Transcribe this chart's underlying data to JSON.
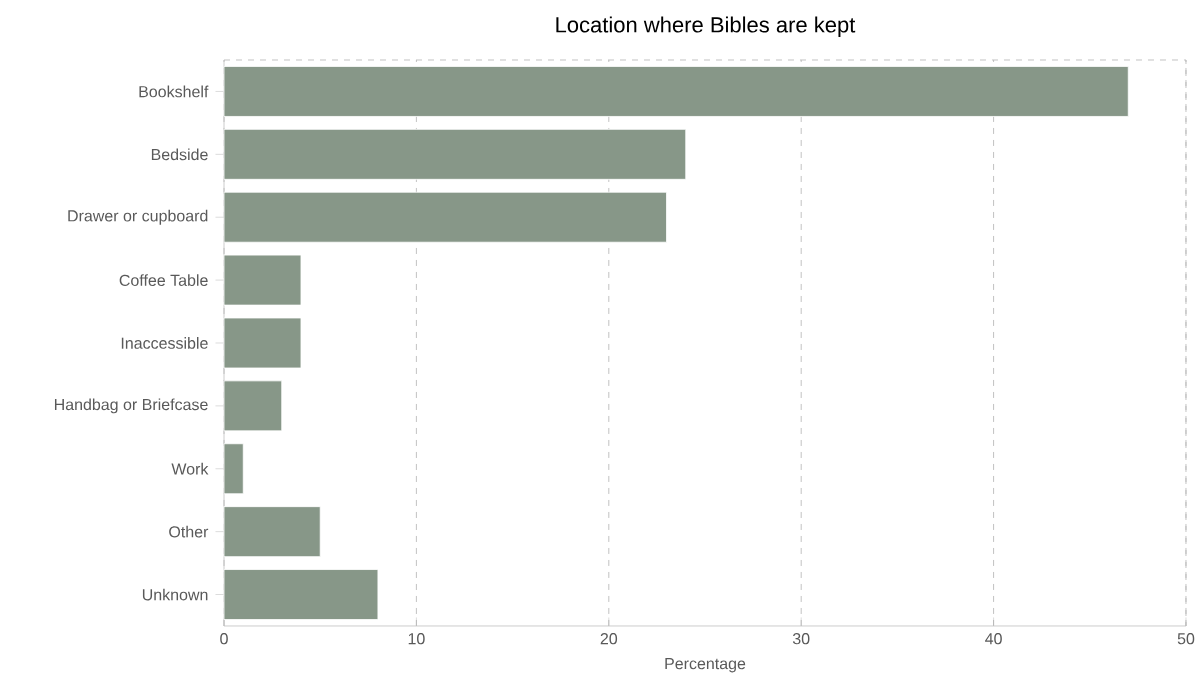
{
  "chart_data": {
    "type": "bar",
    "orientation": "horizontal",
    "title": "Location where Bibles are kept",
    "xlabel": "Percentage",
    "categories": [
      "Bookshelf",
      "Bedside",
      "Drawer or cupboard",
      "Coffee Table",
      "Inaccessible",
      "Handbag or Briefcase",
      "Work",
      "Other",
      "Unknown"
    ],
    "values": [
      47,
      24,
      23,
      4,
      4,
      3,
      1,
      5,
      8
    ],
    "color": "#879788",
    "xlim": [
      0,
      50
    ],
    "xticks": [
      0,
      10,
      20,
      30,
      40,
      50
    ],
    "grid": "x"
  }
}
